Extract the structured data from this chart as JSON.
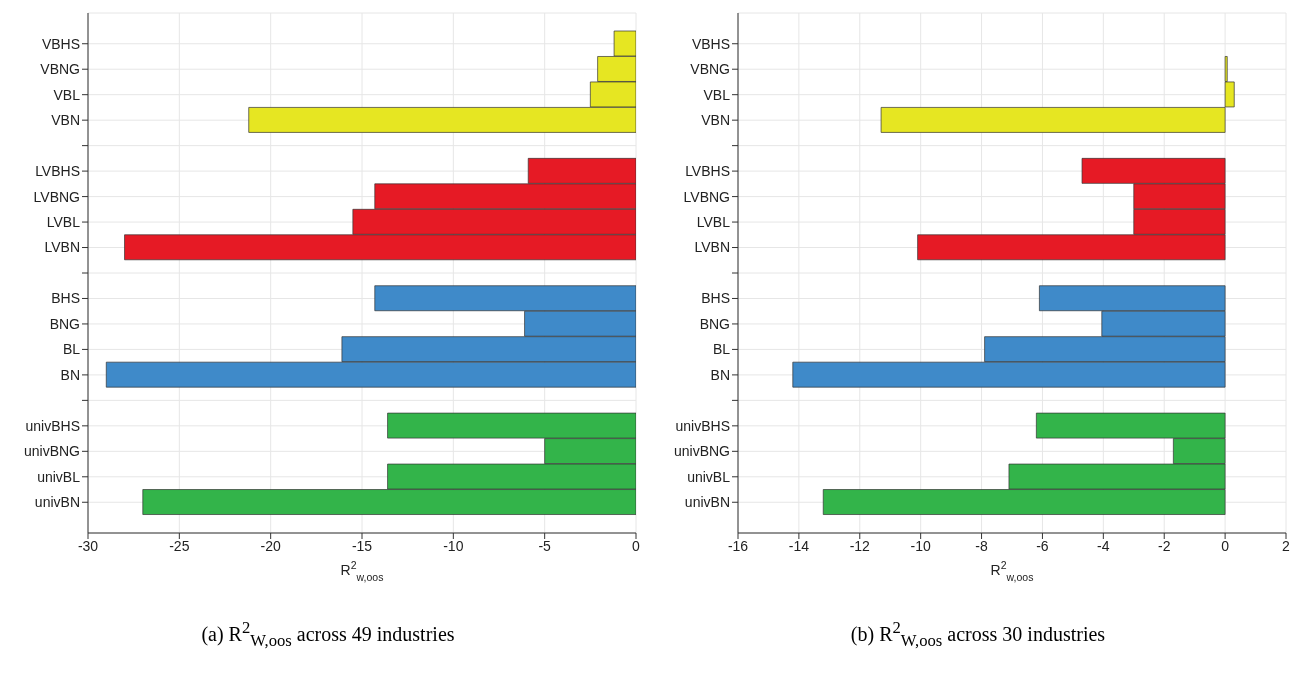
{
  "chart_data": [
    {
      "type": "bar",
      "orientation": "horizontal",
      "title": "(a) R$^{2}$$_{W,oos}$ across 49 industries",
      "xlabel": "R$^{2}$$_{w,oos}$",
      "categories": [
        "VBHS",
        "VBNG",
        "VBL",
        "VBN",
        null,
        "LVBHS",
        "LVBNG",
        "LVBL",
        "LVBN",
        null,
        "BHS",
        "BNG",
        "BL",
        "BN",
        null,
        "univBHS",
        "univBNG",
        "univBL",
        "univBN"
      ],
      "values": [
        -1.2,
        -2.1,
        -2.5,
        -21.2,
        null,
        -5.9,
        -14.3,
        -15.5,
        -28.0,
        null,
        -14.3,
        -6.1,
        -16.1,
        -29.0,
        null,
        -13.6,
        -5.0,
        -13.6,
        -27.0
      ],
      "colors": [
        "#e6e622",
        "#e6e622",
        "#e6e622",
        "#e6e622",
        null,
        "#e61a25",
        "#e61a25",
        "#e61a25",
        "#e61a25",
        null,
        "#3f8ac9",
        "#3f8ac9",
        "#3f8ac9",
        "#3f8ac9",
        null,
        "#33b44a",
        "#33b44a",
        "#33b44a",
        "#33b44a"
      ],
      "xlim": [
        -30,
        0
      ],
      "xticks": [
        -30,
        -25,
        -20,
        -15,
        -10,
        -5,
        0
      ],
      "grid": true
    },
    {
      "type": "bar",
      "orientation": "horizontal",
      "title": "(b) R$^{2}$$_{W,oos}$ across 30 industries",
      "xlabel": "R$^{2}$$_{w,oos}$",
      "categories": [
        "VBHS",
        "VBNG",
        "VBL",
        "VBN",
        null,
        "LVBHS",
        "LVBNG",
        "LVBL",
        "LVBN",
        null,
        "BHS",
        "BNG",
        "BL",
        "BN",
        null,
        "univBHS",
        "univBNG",
        "univBL",
        "univBN"
      ],
      "values": [
        null,
        0.07,
        0.3,
        -11.3,
        null,
        -4.7,
        -3.0,
        -3.0,
        -10.1,
        null,
        -6.1,
        -4.05,
        -7.9,
        -14.2,
        null,
        -6.2,
        -1.7,
        -7.1,
        -13.2
      ],
      "colors": [
        "#e6e622",
        "#e6e622",
        "#e6e622",
        "#e6e622",
        null,
        "#e61a25",
        "#e61a25",
        "#e61a25",
        "#e61a25",
        null,
        "#3f8ac9",
        "#3f8ac9",
        "#3f8ac9",
        "#3f8ac9",
        null,
        "#33b44a",
        "#33b44a",
        "#33b44a",
        "#33b44a"
      ],
      "xlim": [
        -16,
        2
      ],
      "xticks": [
        -16,
        -14,
        -12,
        -10,
        -8,
        -6,
        -4,
        -2,
        0,
        2
      ],
      "grid": true
    }
  ]
}
